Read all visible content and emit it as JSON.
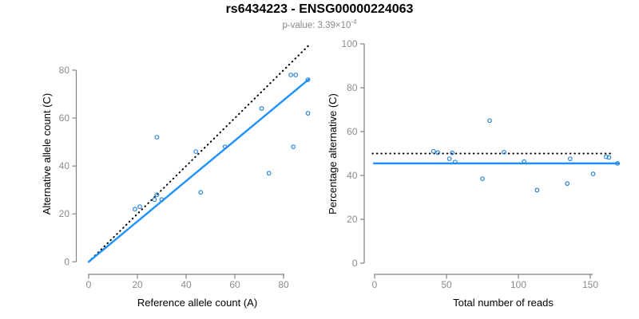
{
  "header": {
    "title": "rs6434223 - ENSG00000224063",
    "pvalue_label": "p-value: 3.39×10",
    "pvalue_exponent": "-4"
  },
  "colors": {
    "title": "#000000",
    "subtitle": "#888888",
    "axis_line": "#808080",
    "tick_label": "#8c8c8c",
    "axis_title": "#000000",
    "point": "#2b85d8",
    "fit_line": "#1e90ff",
    "dotted_line": "#000000"
  },
  "chart_data": [
    {
      "type": "scatter",
      "panel": "left",
      "title": "rs6434223 - ENSG00000224063",
      "subtitle": "p-value: 3.39×10^-4",
      "xlabel": "Reference allele count (A)",
      "ylabel": "Alternative allele count (C)",
      "xlim": [
        0,
        94
      ],
      "ylim": [
        0,
        91
      ],
      "xticks": [
        0,
        20,
        40,
        60,
        80
      ],
      "yticks": [
        0,
        20,
        40,
        60,
        80
      ],
      "grid": false,
      "legend": "none",
      "points": [
        [
          19,
          22
        ],
        [
          21,
          23
        ],
        [
          27,
          26
        ],
        [
          28,
          28
        ],
        [
          30,
          26
        ],
        [
          28,
          52
        ],
        [
          44,
          46
        ],
        [
          46,
          29
        ],
        [
          56,
          48
        ],
        [
          71,
          64
        ],
        [
          74,
          37
        ],
        [
          83,
          78
        ],
        [
          85,
          78
        ],
        [
          84,
          48
        ],
        [
          90,
          62
        ],
        [
          90,
          76
        ]
      ],
      "lines": [
        {
          "name": "identity-line",
          "style": "dotted",
          "color": "#000000",
          "from": [
            0,
            0
          ],
          "to": [
            91,
            91
          ]
        },
        {
          "name": "regression-line",
          "style": "solid",
          "color": "#1e90ff",
          "from": [
            0,
            0
          ],
          "to": [
            90.5,
            76.3
          ]
        }
      ]
    },
    {
      "type": "scatter",
      "panel": "right",
      "xlabel": "Total number of reads",
      "ylabel": "Percentage alternative (C)",
      "xlim": [
        0,
        170
      ],
      "ylim": [
        0,
        100
      ],
      "xticks": [
        0,
        50,
        100,
        150
      ],
      "yticks": [
        0,
        20,
        40,
        60,
        80,
        100
      ],
      "grid": false,
      "legend": "none",
      "points": [
        [
          41,
          51
        ],
        [
          44,
          50.4
        ],
        [
          52,
          47.6
        ],
        [
          54,
          50.3
        ],
        [
          56,
          46.1
        ],
        [
          75,
          38.5
        ],
        [
          80,
          65
        ],
        [
          90,
          50.6
        ],
        [
          104,
          46.3
        ],
        [
          113,
          33.3
        ],
        [
          134,
          36.3
        ],
        [
          136,
          47.6
        ],
        [
          152,
          40.7
        ],
        [
          161,
          48.5
        ],
        [
          163,
          48.2
        ],
        [
          169,
          45.5
        ]
      ],
      "lines": [
        {
          "name": "expected-50pct-line",
          "style": "dotted",
          "color": "#000000",
          "from": [
            -1.5,
            50
          ],
          "to": [
            166,
            50
          ]
        },
        {
          "name": "regression-line",
          "style": "solid",
          "color": "#1e90ff",
          "from": [
            -0.5,
            45.5
          ],
          "to": [
            169.5,
            45.5
          ]
        }
      ]
    }
  ]
}
